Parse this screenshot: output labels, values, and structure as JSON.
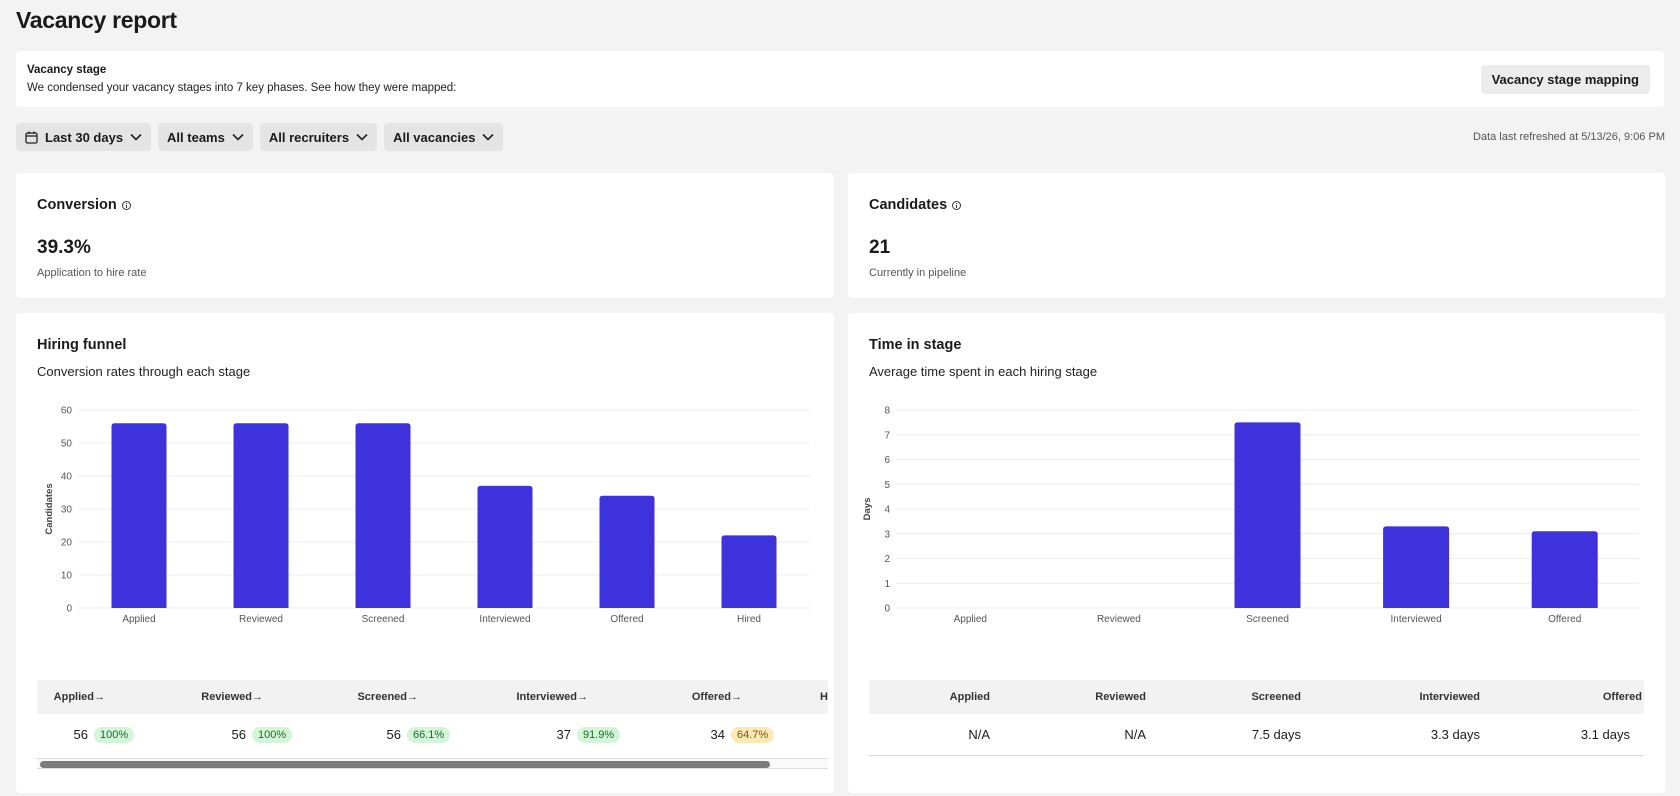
{
  "page": {
    "title": "Vacancy report"
  },
  "banner": {
    "title": "Vacancy stage",
    "description": "We condensed your vacancy stages into 7 key phases. See how they were mapped:",
    "mapping_button": "Vacancy stage mapping"
  },
  "filters": {
    "date_range": "Last 30 days",
    "teams": "All teams",
    "recruiters": "All recruiters",
    "vacancies": "All vacancies"
  },
  "refreshed": "Data last refreshed at 5/13/26, 9:06 PM",
  "conversion": {
    "title": "Conversion",
    "value": "39.3%",
    "subtitle": "Application to hire rate"
  },
  "candidates": {
    "title": "Candidates",
    "value": "21",
    "subtitle": "Currently in pipeline"
  },
  "funnel": {
    "title": "Hiring funnel",
    "subtitle": "Conversion rates through each stage",
    "table": {
      "columns": [
        "Applied",
        "→",
        "Reviewed",
        "→",
        "Screened",
        "→",
        "Interviewed",
        "→",
        "Offered",
        "→",
        "H"
      ],
      "row": [
        "56",
        "100%",
        "56",
        "100%",
        "56",
        "66.1%",
        "37",
        "91.9%",
        "34",
        "64.7%",
        ""
      ]
    }
  },
  "time_in_stage": {
    "title": "Time in stage",
    "subtitle": "Average time spent in each hiring stage",
    "table": {
      "columns": [
        "Applied",
        "Reviewed",
        "Screened",
        "Interviewed",
        "Offered"
      ],
      "row": [
        "N/A",
        "N/A",
        "7.5 days",
        "3.3 days",
        "3.1 days"
      ]
    }
  },
  "colors": {
    "bar": "#3d32db",
    "pill_green": "#d3f5d8",
    "pill_yellow": "#fce9b6"
  },
  "chart_data": [
    {
      "type": "bar",
      "categories": [
        "Applied",
        "Reviewed",
        "Screened",
        "Interviewed",
        "Offered",
        "Hired"
      ],
      "values": [
        56,
        56,
        56,
        37,
        34,
        22
      ],
      "xlabel": "",
      "ylabel": "Candidates",
      "ylim": [
        0,
        60
      ],
      "yticks": [
        0,
        10,
        20,
        30,
        40,
        50,
        60
      ],
      "grid": true
    },
    {
      "type": "bar",
      "categories": [
        "Applied",
        "Reviewed",
        "Screened",
        "Interviewed",
        "Offered"
      ],
      "values": [
        0,
        0,
        7.5,
        3.3,
        3.1
      ],
      "xlabel": "",
      "ylabel": "Days",
      "ylim": [
        0,
        8
      ],
      "yticks": [
        0,
        1,
        2,
        3,
        4,
        5,
        6,
        7,
        8
      ],
      "grid": true
    }
  ]
}
